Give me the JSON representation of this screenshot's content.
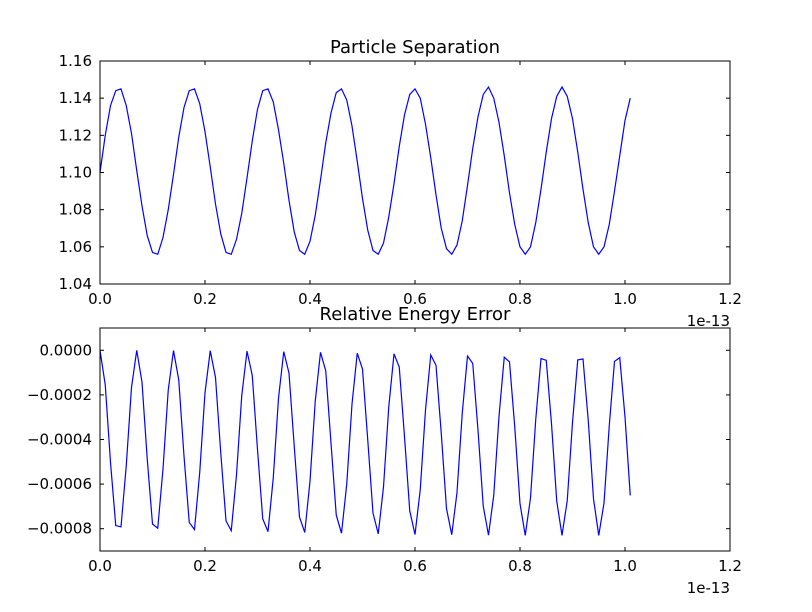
{
  "chart_data": [
    {
      "type": "line",
      "title": "Particle Separation",
      "x_offset_label": "1e-13",
      "x": [
        0,
        0.01,
        0.02,
        0.03,
        0.04,
        0.05,
        0.06,
        0.07,
        0.08,
        0.09,
        0.1,
        0.11,
        0.12,
        0.13,
        0.14,
        0.15,
        0.16,
        0.17,
        0.18,
        0.19,
        0.2,
        0.21,
        0.22,
        0.23,
        0.24,
        0.25,
        0.26,
        0.27,
        0.28,
        0.29,
        0.3,
        0.31,
        0.32,
        0.33,
        0.34,
        0.35,
        0.36,
        0.37,
        0.38,
        0.39,
        0.4,
        0.41,
        0.42,
        0.43,
        0.44,
        0.45,
        0.46,
        0.47,
        0.48,
        0.49,
        0.5,
        0.51,
        0.52,
        0.53,
        0.54,
        0.55,
        0.56,
        0.57,
        0.58,
        0.59,
        0.6,
        0.61,
        0.62,
        0.63,
        0.64,
        0.65,
        0.66,
        0.67,
        0.68,
        0.69,
        0.7,
        0.71,
        0.72,
        0.73,
        0.74,
        0.75,
        0.76,
        0.77,
        0.78,
        0.79,
        0.8,
        0.81,
        0.82,
        0.83,
        0.84,
        0.85,
        0.86,
        0.87,
        0.88,
        0.89,
        0.9,
        0.91,
        0.92,
        0.93,
        0.94,
        0.95,
        0.96,
        0.97,
        0.98,
        0.99,
        1.0,
        1.01
      ],
      "values": [
        1.1,
        1.12,
        1.136,
        1.144,
        1.145,
        1.136,
        1.121,
        1.101,
        1.082,
        1.066,
        1.057,
        1.056,
        1.065,
        1.08,
        1.099,
        1.119,
        1.135,
        1.144,
        1.145,
        1.137,
        1.122,
        1.103,
        1.083,
        1.067,
        1.057,
        1.056,
        1.064,
        1.078,
        1.097,
        1.117,
        1.134,
        1.144,
        1.145,
        1.138,
        1.123,
        1.105,
        1.085,
        1.068,
        1.058,
        1.056,
        1.063,
        1.077,
        1.096,
        1.116,
        1.132,
        1.143,
        1.145,
        1.139,
        1.125,
        1.106,
        1.086,
        1.069,
        1.058,
        1.056,
        1.062,
        1.076,
        1.094,
        1.114,
        1.131,
        1.142,
        1.145,
        1.14,
        1.126,
        1.108,
        1.088,
        1.07,
        1.059,
        1.056,
        1.061,
        1.074,
        1.093,
        1.113,
        1.13,
        1.142,
        1.146,
        1.14,
        1.127,
        1.109,
        1.089,
        1.072,
        1.06,
        1.056,
        1.06,
        1.073,
        1.091,
        1.111,
        1.129,
        1.141,
        1.146,
        1.141,
        1.129,
        1.111,
        1.091,
        1.073,
        1.06,
        1.056,
        1.06,
        1.072,
        1.09,
        1.109,
        1.128,
        1.14
      ],
      "color": "#0000ff",
      "xlim": [
        0,
        1.2
      ],
      "xticks": [
        {
          "value": 0,
          "label": "0.0"
        },
        0.2,
        0.4,
        0.6,
        0.8,
        {
          "value": 1,
          "label": "1.0"
        },
        1.2
      ],
      "ylim": [
        1.04,
        1.16
      ],
      "yticks": [
        1.04,
        1.06,
        1.08,
        {
          "value": 1.1,
          "label": "1.10"
        },
        1.12,
        1.14,
        1.16
      ]
    },
    {
      "type": "line",
      "title": "Relative Energy Error",
      "x_offset_label": "1e-13",
      "x": [
        0,
        0.01,
        0.02,
        0.03,
        0.04,
        0.05,
        0.06,
        0.07,
        0.08,
        0.09,
        0.1,
        0.11,
        0.12,
        0.13,
        0.14,
        0.15,
        0.16,
        0.17,
        0.18,
        0.19,
        0.2,
        0.21,
        0.22,
        0.23,
        0.24,
        0.25,
        0.26,
        0.27,
        0.28,
        0.29,
        0.3,
        0.31,
        0.32,
        0.33,
        0.34,
        0.35,
        0.36,
        0.37,
        0.38,
        0.39,
        0.4,
        0.41,
        0.42,
        0.43,
        0.44,
        0.45,
        0.46,
        0.47,
        0.48,
        0.49,
        0.5,
        0.51,
        0.52,
        0.53,
        0.54,
        0.55,
        0.56,
        0.57,
        0.58,
        0.59,
        0.6,
        0.61,
        0.62,
        0.63,
        0.64,
        0.65,
        0.66,
        0.67,
        0.68,
        0.69,
        0.7,
        0.71,
        0.72,
        0.73,
        0.74,
        0.75,
        0.76,
        0.77,
        0.78,
        0.79,
        0.8,
        0.81,
        0.82,
        0.83,
        0.84,
        0.85,
        0.86,
        0.87,
        0.88,
        0.89,
        0.9,
        0.91,
        0.92,
        0.93,
        0.94,
        0.95,
        0.96,
        0.97,
        0.98,
        0.99,
        1.0,
        1.01
      ],
      "values": [
        0,
        -0.000155,
        -0.000503,
        -0.000786,
        -0.000792,
        -0.000518,
        -0.000166,
        0,
        -0.000143,
        -0.000489,
        -0.000779,
        -0.000798,
        -0.000532,
        -0.000178,
        -1e-06,
        -0.000133,
        -0.000474,
        -0.000772,
        -0.000804,
        -0.000546,
        -0.00019,
        -2e-06,
        -0.000122,
        -0.00046,
        -0.000765,
        -0.000809,
        -0.000559,
        -0.000203,
        -4e-06,
        -0.000112,
        -0.000445,
        -0.000756,
        -0.000813,
        -0.000573,
        -0.000215,
        -6e-06,
        -0.000102,
        -0.000431,
        -0.000748,
        -0.000817,
        -0.000587,
        -0.000228,
        -9e-06,
        -9.2e-05,
        -0.000416,
        -0.000739,
        -0.00082,
        -0.0006,
        -0.000241,
        -1.3e-05,
        -8.4e-05,
        -0.000402,
        -0.00073,
        -0.000823,
        -0.000613,
        -0.000255,
        -1.6e-05,
        -7.5e-05,
        -0.000387,
        -0.00072,
        -0.000826,
        -0.000625,
        -0.000268,
        -2.1e-05,
        -6.7e-05,
        -0.000372,
        -0.00071,
        -0.000827,
        -0.000638,
        -0.000282,
        -2.6e-05,
        -5.9e-05,
        -0.000358,
        -0.000699,
        -0.000829,
        -0.00065,
        -0.000296,
        -3.1e-05,
        -5.2e-05,
        -0.000343,
        -0.000688,
        -0.00083,
        -0.000662,
        -0.00031,
        -3.7e-05,
        -4.5e-05,
        -0.000329,
        -0.000677,
        -0.00083,
        -0.000674,
        -0.000324,
        -4.3e-05,
        -3.9e-05,
        -0.000314,
        -0.000666,
        -0.00083,
        -0.000685,
        -0.000339,
        -5e-05,
        -3.3e-05,
        -0.000299,
        -0.000651
      ],
      "color": "#0000ff",
      "xlim": [
        0,
        1.2
      ],
      "xticks": [
        {
          "value": 0,
          "label": "0.0"
        },
        0.2,
        0.4,
        0.6,
        0.8,
        {
          "value": 1,
          "label": "1.0"
        },
        1.2
      ],
      "ylim": [
        -0.0009,
        0.0001
      ],
      "yticks": [
        {
          "value": -0.0008,
          "label": "−0.0008"
        },
        {
          "value": -0.0006,
          "label": "−0.0006"
        },
        {
          "value": -0.0004,
          "label": "−0.0004"
        },
        {
          "value": -0.0002,
          "label": "−0.0002"
        },
        {
          "value": 0,
          "label": "0.0000"
        }
      ]
    }
  ]
}
